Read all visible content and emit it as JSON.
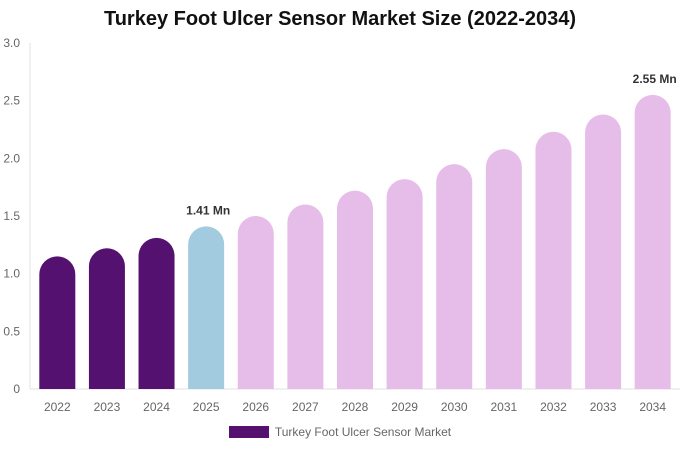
{
  "chart_data": {
    "type": "bar",
    "title": "Turkey Foot Ulcer Sensor Market Size (2022-2034)",
    "categories": [
      "2022",
      "2023",
      "2024",
      "2025",
      "2026",
      "2027",
      "2028",
      "2029",
      "2030",
      "2031",
      "2032",
      "2033",
      "2034"
    ],
    "series": [
      {
        "name": "Turkey Foot Ulcer Sensor Market",
        "values": [
          1.15,
          1.22,
          1.31,
          1.41,
          1.5,
          1.6,
          1.72,
          1.82,
          1.95,
          2.08,
          2.23,
          2.38,
          2.55
        ]
      }
    ],
    "bar_colors": [
      "#541170",
      "#541170",
      "#541170",
      "#a2cbdf",
      "#e6bce8",
      "#e6bce8",
      "#e6bce8",
      "#e6bce8",
      "#e6bce8",
      "#e6bce8",
      "#e6bce8",
      "#e6bce8",
      "#e6bce8"
    ],
    "data_labels": [
      {
        "category": "2025",
        "text": "1.41 Mn"
      },
      {
        "category": "2034",
        "text": "2.55 Mn"
      }
    ],
    "ylim": [
      0,
      3.0
    ],
    "yticks": [
      "0",
      "0.5",
      "1.0",
      "1.5",
      "2.0",
      "2.5",
      "3.0"
    ],
    "xlabel": "",
    "ylabel": "",
    "grid": false,
    "legend": "bottom",
    "legend_color": "#541170"
  }
}
